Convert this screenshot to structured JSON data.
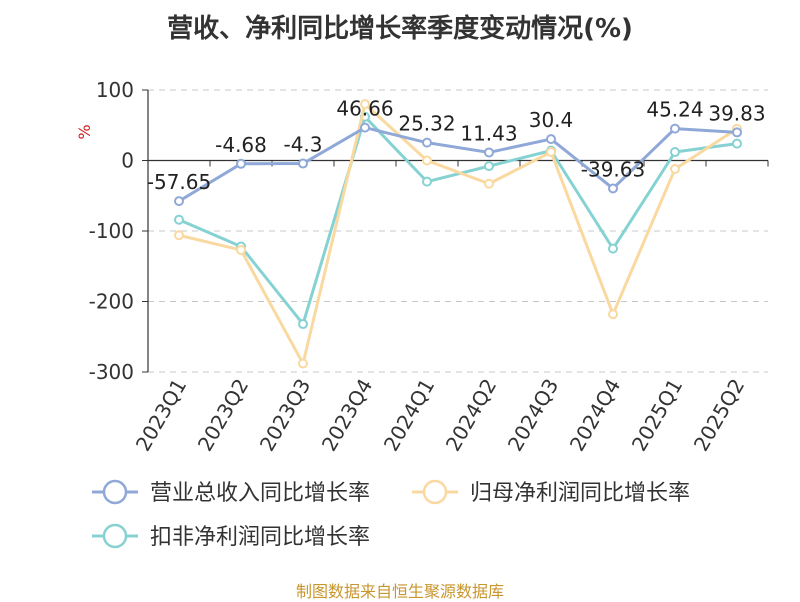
{
  "chart_data": {
    "type": "line",
    "title": "营收、净利同比增长率季度变动情况(%)",
    "unit_label": "%",
    "categories": [
      "2023Q1",
      "2023Q2",
      "2023Q3",
      "2023Q4",
      "2024Q1",
      "2024Q2",
      "2024Q3",
      "2024Q4",
      "2025Q1",
      "2025Q2"
    ],
    "ylim": [
      -300,
      100
    ],
    "yticks": [
      100,
      0,
      -100,
      -200,
      -300
    ],
    "grid": true,
    "legend_position": "bottom",
    "series": [
      {
        "name": "营业总收入同比增长率",
        "color": "#8fa8d8",
        "values": [
          -57.65,
          -4.68,
          -4.3,
          46.66,
          25.32,
          11.43,
          30.4,
          -39.63,
          45.24,
          39.83
        ],
        "labels": [
          "-57.65",
          "-4.68",
          "-4.3",
          "46.66",
          "25.32",
          "11.43",
          "30.4",
          "-39.63",
          "45.24",
          "39.83"
        ]
      },
      {
        "name": "归母净利润同比增长率",
        "color": "#f9d9a0",
        "values": [
          -106,
          -127,
          -288,
          80,
          0,
          -33,
          12,
          -218,
          -12,
          45
        ]
      },
      {
        "name": "扣非净利润同比增长率",
        "color": "#86d2d2",
        "values": [
          -84,
          -122,
          -232,
          62,
          -30,
          -8,
          14,
          -125,
          12,
          24
        ]
      }
    ]
  },
  "source": "制图数据来自恒生聚源数据库"
}
